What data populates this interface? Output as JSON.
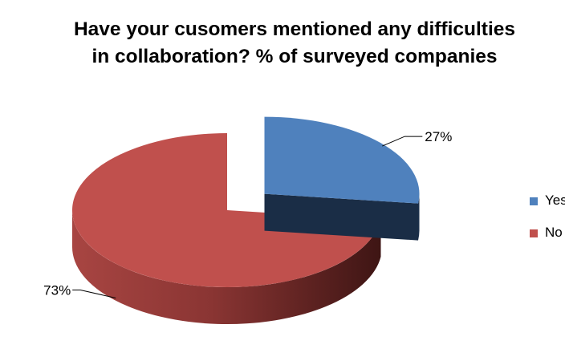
{
  "chart_data": {
    "type": "pie",
    "title_lines": [
      "Have your cusomers mentioned any difficulties",
      "in collaboration? % of surveyed companies"
    ],
    "categories": [
      "Yes",
      "No"
    ],
    "values": [
      27,
      73
    ],
    "data_labels": [
      "27%",
      "73%"
    ],
    "colors": [
      "#4f81bd",
      "#c0504d"
    ],
    "legend_position": "right",
    "exploded": "Yes",
    "style": "3d"
  }
}
